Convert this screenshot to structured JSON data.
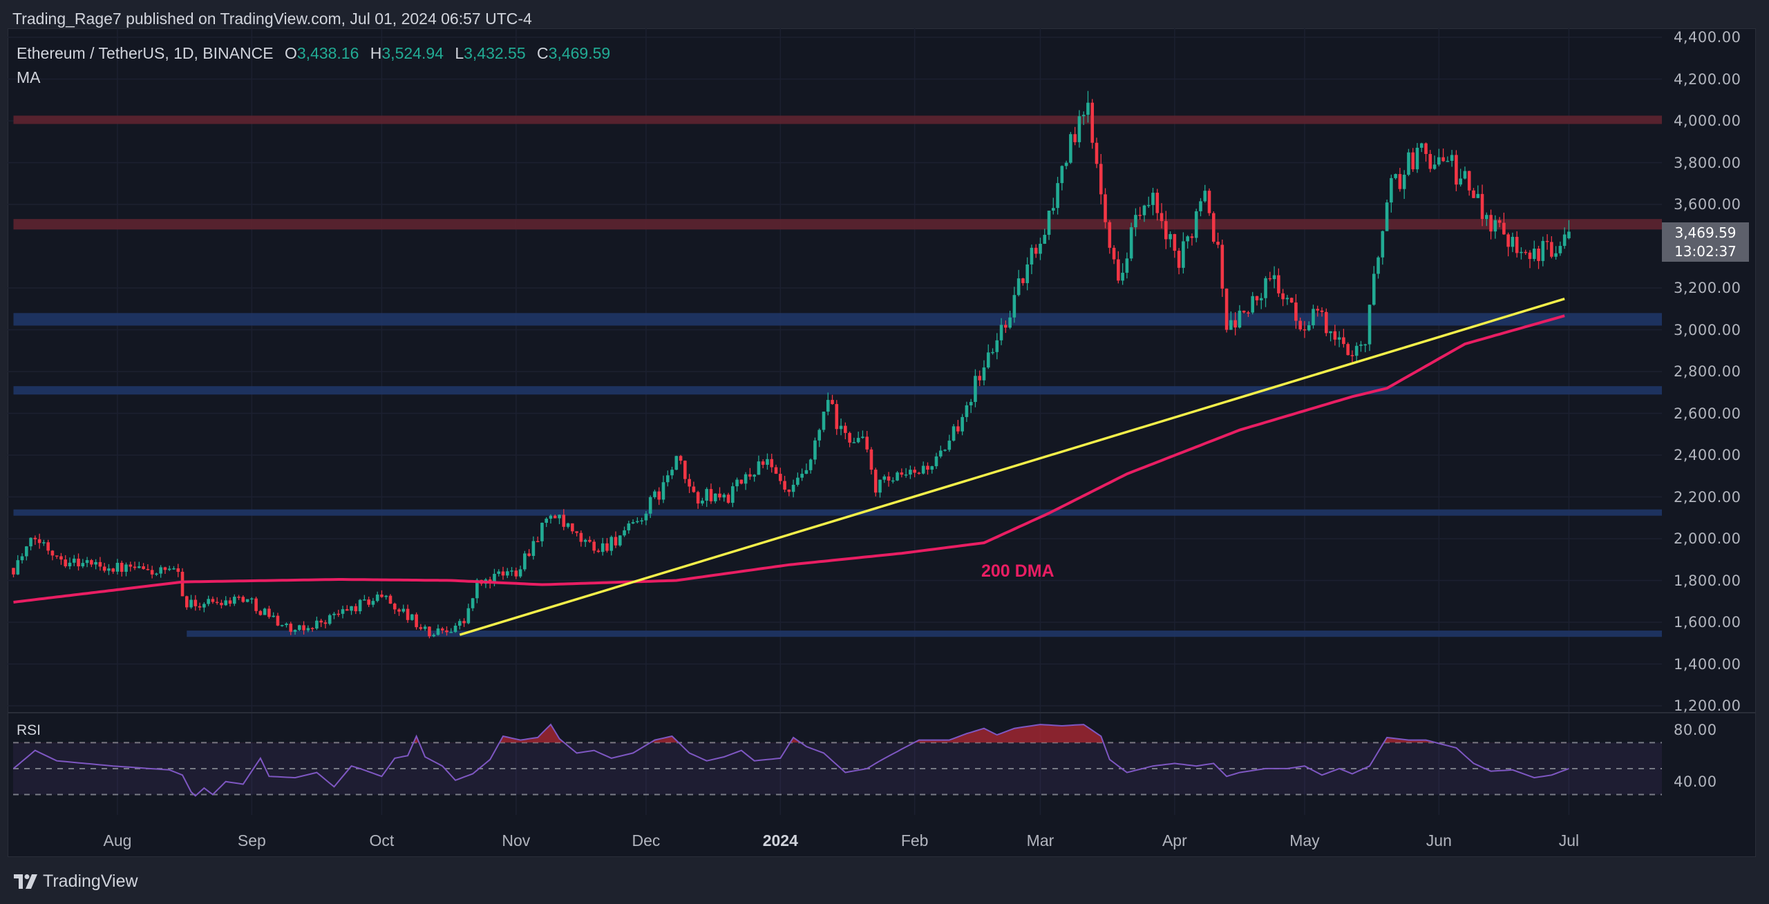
{
  "header": {
    "published": "Trading_Rage7 published on TradingView.com, Jul 01, 2024 06:57 UTC-4"
  },
  "legend": {
    "symbol": "Ethereum / TetherUS, 1D, BINANCE",
    "open_label": "O",
    "open": "3,438.16",
    "high_label": "H",
    "high": "3,524.94",
    "low_label": "L",
    "low": "3,432.55",
    "close_label": "C",
    "close": "3,469.59",
    "indicator": "MA"
  },
  "colors": {
    "up": "#22ab94",
    "down": "#f23645",
    "ma": "#e91e63",
    "trendline": "#f5f04a",
    "resistance_zone": "#5e2430",
    "support_zone": "#1f3566",
    "rsi_line": "#7e57c2"
  },
  "footer": {
    "brand": "TradingView",
    "logo_icon": "tradingview-logo-icon"
  },
  "chart_data": {
    "type": "candlestick",
    "title": "Ethereum / TetherUS, 1D, BINANCE",
    "ylim": [
      1200,
      4400
    ],
    "y_ticks": [
      "4,400.00",
      "4,200.00",
      "4,000.00",
      "3,800.00",
      "3,600.00",
      "3,200.00",
      "3,000.00",
      "2,800.00",
      "2,600.00",
      "2,400.00",
      "2,200.00",
      "2,000.00",
      "1,800.00",
      "1,600.00",
      "1,400.00",
      "1,200.00"
    ],
    "x_ticks": [
      {
        "label": "Aug",
        "date": "2023-08-01"
      },
      {
        "label": "Sep",
        "date": "2023-09-01"
      },
      {
        "label": "Oct",
        "date": "2023-10-01"
      },
      {
        "label": "Nov",
        "date": "2023-11-01"
      },
      {
        "label": "Dec",
        "date": "2023-12-01"
      },
      {
        "label": "2024",
        "date": "2024-01-01",
        "bold": true
      },
      {
        "label": "Feb",
        "date": "2024-02-01"
      },
      {
        "label": "Mar",
        "date": "2024-03-01"
      },
      {
        "label": "Apr",
        "date": "2024-04-01"
      },
      {
        "label": "May",
        "date": "2024-05-01"
      },
      {
        "label": "Jun",
        "date": "2024-06-01"
      },
      {
        "label": "Jul",
        "date": "2024-07-01"
      }
    ],
    "last_price": "3,469.59",
    "countdown": "13:02:37",
    "last_candle": {
      "open": 3438.16,
      "high": 3524.94,
      "low": 3432.55,
      "close": 3469.59
    },
    "close_path": [
      [
        "2023-07-08",
        1860
      ],
      [
        "2023-07-13",
        2000
      ],
      [
        "2023-07-20",
        1900
      ],
      [
        "2023-08-01",
        1860
      ],
      [
        "2023-08-15",
        1830
      ],
      [
        "2023-08-17",
        1680
      ],
      [
        "2023-08-30",
        1720
      ],
      [
        "2023-09-11",
        1550
      ],
      [
        "2023-09-20",
        1630
      ],
      [
        "2023-10-01",
        1730
      ],
      [
        "2023-10-10",
        1580
      ],
      [
        "2023-10-12",
        1540
      ],
      [
        "2023-10-20",
        1600
      ],
      [
        "2023-10-23",
        1780
      ],
      [
        "2023-11-01",
        1850
      ],
      [
        "2023-11-09",
        2120
      ],
      [
        "2023-11-15",
        2000
      ],
      [
        "2023-11-20",
        1950
      ],
      [
        "2023-11-28",
        2050
      ],
      [
        "2023-12-05",
        2250
      ],
      [
        "2023-12-08",
        2380
      ],
      [
        "2023-12-12",
        2200
      ],
      [
        "2023-12-20",
        2200
      ],
      [
        "2023-12-28",
        2380
      ],
      [
        "2024-01-03",
        2200
      ],
      [
        "2024-01-08",
        2350
      ],
      [
        "2024-01-11",
        2600
      ],
      [
        "2024-01-12",
        2650
      ],
      [
        "2024-01-15",
        2500
      ],
      [
        "2024-01-20",
        2470
      ],
      [
        "2024-01-23",
        2250
      ],
      [
        "2024-01-31",
        2300
      ],
      [
        "2024-02-08",
        2400
      ],
      [
        "2024-02-14",
        2700
      ],
      [
        "2024-02-20",
        2950
      ],
      [
        "2024-02-28",
        3350
      ],
      [
        "2024-03-04",
        3600
      ],
      [
        "2024-03-06",
        3800
      ],
      [
        "2024-03-12",
        4050
      ],
      [
        "2024-03-15",
        3700
      ],
      [
        "2024-03-19",
        3200
      ],
      [
        "2024-03-22",
        3500
      ],
      [
        "2024-03-27",
        3600
      ],
      [
        "2024-04-02",
        3300
      ],
      [
        "2024-04-08",
        3700
      ],
      [
        "2024-04-12",
        3250
      ],
      [
        "2024-04-13",
        3000
      ],
      [
        "2024-04-20",
        3150
      ],
      [
        "2024-04-24",
        3250
      ],
      [
        "2024-04-30",
        3000
      ],
      [
        "2024-05-03",
        3100
      ],
      [
        "2024-05-10",
        2900
      ],
      [
        "2024-05-15",
        2950
      ],
      [
        "2024-05-20",
        3650
      ],
      [
        "2024-05-27",
        3850
      ],
      [
        "2024-06-03",
        3800
      ],
      [
        "2024-06-07",
        3700
      ],
      [
        "2024-06-12",
        3550
      ],
      [
        "2024-06-17",
        3450
      ],
      [
        "2024-06-24",
        3350
      ],
      [
        "2024-07-01",
        3469.59
      ]
    ],
    "ma200_path": [
      [
        "2023-07-08",
        1696
      ],
      [
        "2023-08-16",
        1793
      ],
      [
        "2023-09-21",
        1805
      ],
      [
        "2023-10-17",
        1800
      ],
      [
        "2023-11-07",
        1780
      ],
      [
        "2023-12-08",
        1800
      ],
      [
        "2024-01-03",
        1875
      ],
      [
        "2024-01-29",
        1930
      ],
      [
        "2024-02-17",
        1980
      ],
      [
        "2024-03-03",
        2122
      ],
      [
        "2024-03-21",
        2310
      ],
      [
        "2024-04-16",
        2520
      ],
      [
        "2024-05-12",
        2680
      ],
      [
        "2024-05-20",
        2720
      ],
      [
        "2024-06-07",
        2932
      ],
      [
        "2024-06-30",
        3067
      ]
    ],
    "ma_annotation": "200 DMA",
    "trendline": {
      "start": [
        "2023-10-19",
        1540
      ],
      "end": [
        "2024-06-30",
        3148
      ]
    },
    "zones": [
      {
        "kind": "resistance",
        "low": 3985,
        "high": 4025,
        "from": "2023-07-08"
      },
      {
        "kind": "resistance",
        "low": 3480,
        "high": 3530,
        "from": "2023-07-08"
      },
      {
        "kind": "support",
        "low": 3020,
        "high": 3080,
        "from": "2023-07-08"
      },
      {
        "kind": "support",
        "low": 2690,
        "high": 2730,
        "from": "2023-07-08"
      },
      {
        "kind": "support",
        "low": 2110,
        "high": 2140,
        "from": "2023-07-08"
      },
      {
        "kind": "support",
        "low": 1530,
        "high": 1560,
        "from": "2023-08-17"
      }
    ],
    "rsi": {
      "label": "RSI",
      "ticks": [
        "80.00",
        "40.00"
      ],
      "levels": [
        70,
        50,
        30
      ],
      "path": [
        [
          "2023-07-08",
          50
        ],
        [
          "2023-07-13",
          64
        ],
        [
          "2023-07-18",
          56
        ],
        [
          "2023-07-31",
          52
        ],
        [
          "2023-08-13",
          49
        ],
        [
          "2023-08-16",
          45
        ],
        [
          "2023-08-18",
          32
        ],
        [
          "2023-08-19",
          29
        ],
        [
          "2023-08-21",
          35
        ],
        [
          "2023-08-23",
          30
        ],
        [
          "2023-08-26",
          40
        ],
        [
          "2023-08-30",
          38
        ],
        [
          "2023-09-03",
          58
        ],
        [
          "2023-09-05",
          44
        ],
        [
          "2023-09-11",
          43
        ],
        [
          "2023-09-16",
          47
        ],
        [
          "2023-09-20",
          36
        ],
        [
          "2023-09-24",
          52
        ],
        [
          "2023-09-26",
          50
        ],
        [
          "2023-10-01",
          44
        ],
        [
          "2023-10-04",
          58
        ],
        [
          "2023-10-07",
          60
        ],
        [
          "2023-10-09",
          75
        ],
        [
          "2023-10-11",
          59
        ],
        [
          "2023-10-15",
          52
        ],
        [
          "2023-10-18",
          41
        ],
        [
          "2023-10-22",
          46
        ],
        [
          "2023-10-26",
          57
        ],
        [
          "2023-10-29",
          75
        ],
        [
          "2023-11-02",
          72
        ],
        [
          "2023-11-06",
          74
        ],
        [
          "2023-11-09",
          84
        ],
        [
          "2023-11-11",
          73
        ],
        [
          "2023-11-15",
          62
        ],
        [
          "2023-11-19",
          64
        ],
        [
          "2023-11-23",
          58
        ],
        [
          "2023-11-28",
          62
        ],
        [
          "2023-12-03",
          72
        ],
        [
          "2023-12-07",
          75
        ],
        [
          "2023-12-11",
          62
        ],
        [
          "2023-12-15",
          56
        ],
        [
          "2023-12-19",
          59
        ],
        [
          "2023-12-23",
          64
        ],
        [
          "2023-12-26",
          56
        ],
        [
          "2024-01-01",
          58
        ],
        [
          "2024-01-04",
          74
        ],
        [
          "2024-01-07",
          67
        ],
        [
          "2024-01-11",
          62
        ],
        [
          "2024-01-16",
          47
        ],
        [
          "2024-01-21",
          50
        ],
        [
          "2024-01-24",
          56
        ],
        [
          "2024-01-29",
          65
        ],
        [
          "2024-02-02",
          72
        ],
        [
          "2024-02-09",
          72
        ],
        [
          "2024-02-13",
          77
        ],
        [
          "2024-02-17",
          81
        ],
        [
          "2024-02-20",
          76
        ],
        [
          "2024-02-24",
          81
        ],
        [
          "2024-03-01",
          84
        ],
        [
          "2024-03-06",
          83
        ],
        [
          "2024-03-11",
          84
        ],
        [
          "2024-03-15",
          75
        ],
        [
          "2024-03-17",
          57
        ],
        [
          "2024-03-21",
          47
        ],
        [
          "2024-03-27",
          52
        ],
        [
          "2024-04-01",
          54
        ],
        [
          "2024-04-06",
          52
        ],
        [
          "2024-04-10",
          54
        ],
        [
          "2024-04-13",
          44
        ],
        [
          "2024-04-16",
          47
        ],
        [
          "2024-04-22",
          50
        ],
        [
          "2024-04-27",
          50
        ],
        [
          "2024-05-01",
          52
        ],
        [
          "2024-05-05",
          45
        ],
        [
          "2024-05-09",
          50
        ],
        [
          "2024-05-12",
          46
        ],
        [
          "2024-05-16",
          52
        ],
        [
          "2024-05-20",
          74
        ],
        [
          "2024-05-25",
          72
        ],
        [
          "2024-05-29",
          72
        ],
        [
          "2024-06-05",
          66
        ],
        [
          "2024-06-09",
          54
        ],
        [
          "2024-06-13",
          48
        ],
        [
          "2024-06-18",
          49
        ],
        [
          "2024-06-23",
          43
        ],
        [
          "2024-06-27",
          45
        ],
        [
          "2024-07-01",
          50
        ]
      ]
    }
  }
}
